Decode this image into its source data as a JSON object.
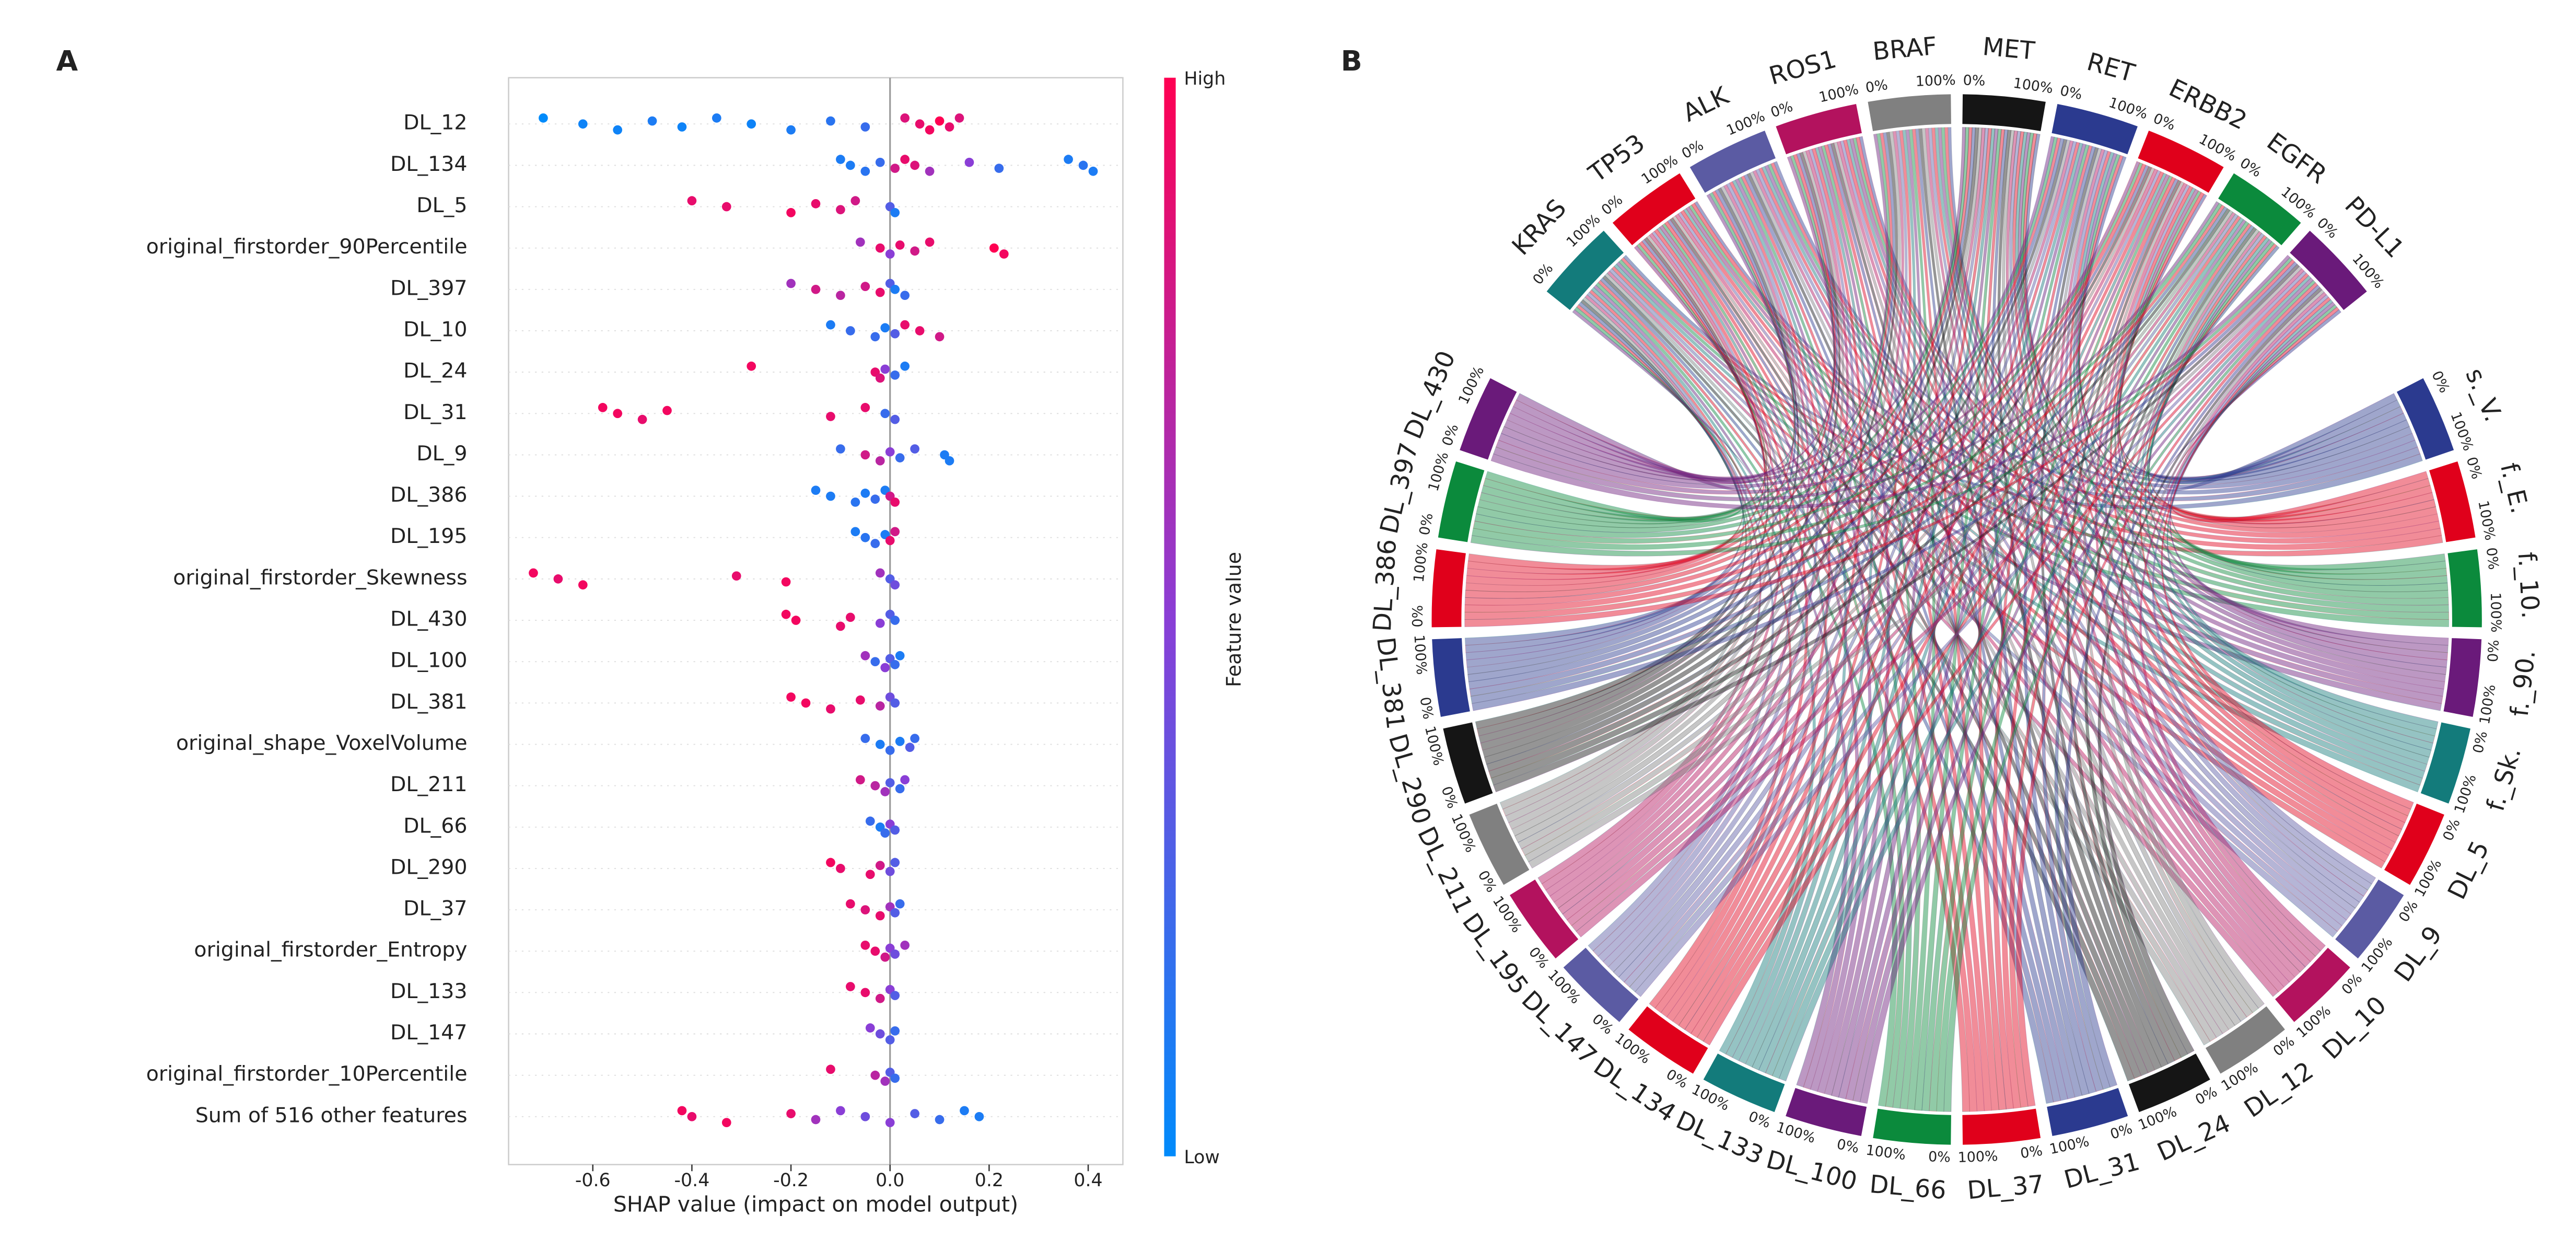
{
  "chart_data": [
    {
      "type": "beeswarm",
      "panel": "A",
      "xlabel": "SHAP value (impact on model output)",
      "colorbar_label": "Feature value",
      "colorbar_high": "High",
      "colorbar_low": "Low",
      "colormap": [
        "#008bfb",
        "#8a3ed6",
        "#ff0052"
      ],
      "xlim": [
        -0.77,
        0.47
      ],
      "xticks": [
        -0.6,
        -0.4,
        -0.2,
        {
          "value": 0,
          "label": "0.0"
        },
        0.2,
        0.4
      ],
      "series": [
        {
          "name": "DL_12",
          "values": [
            -0.7,
            -0.62,
            -0.55,
            -0.48,
            -0.42,
            -0.35,
            -0.28,
            -0.2,
            -0.12,
            -0.05,
            0.03,
            0.06,
            0.08,
            0.1,
            0.12,
            0.14
          ],
          "feature_values": [
            0,
            0.05,
            0.05,
            0.1,
            0.05,
            0.1,
            0.05,
            0.1,
            0.15,
            0.2,
            0.85,
            0.9,
            0.95,
            1,
            0.9,
            0.85
          ]
        },
        {
          "name": "DL_134",
          "values": [
            -0.1,
            -0.08,
            -0.05,
            -0.02,
            0.01,
            0.03,
            0.05,
            0.08,
            0.16,
            0.22,
            0.36,
            0.39,
            0.41
          ],
          "feature_values": [
            0.1,
            0.1,
            0.15,
            0.2,
            0.8,
            0.9,
            0.85,
            0.6,
            0.5,
            0.2,
            0.1,
            0.15,
            0.1
          ]
        },
        {
          "name": "DL_5",
          "values": [
            -0.4,
            -0.33,
            -0.2,
            -0.15,
            -0.1,
            -0.07,
            0,
            0.01
          ],
          "feature_values": [
            0.9,
            0.9,
            0.95,
            0.9,
            0.85,
            0.8,
            0.3,
            0.1
          ]
        },
        {
          "name": "original_firstorder_90Percentile",
          "values": [
            -0.06,
            -0.02,
            0,
            0.02,
            0.05,
            0.08,
            0.21,
            0.23
          ],
          "feature_values": [
            0.6,
            0.9,
            0.5,
            0.9,
            0.8,
            0.9,
            1,
            0.95
          ]
        },
        {
          "name": "DL_397",
          "values": [
            -0.2,
            -0.15,
            -0.1,
            -0.05,
            -0.02,
            0,
            0.01,
            0.03
          ],
          "feature_values": [
            0.6,
            0.8,
            0.7,
            0.8,
            0.9,
            0.3,
            0.1,
            0.2
          ]
        },
        {
          "name": "DL_10",
          "values": [
            -0.12,
            -0.08,
            -0.03,
            -0.01,
            0.01,
            0.03,
            0.06,
            0.1
          ],
          "feature_values": [
            0.1,
            0.2,
            0.2,
            0.1,
            0.3,
            0.9,
            0.9,
            0.8
          ]
        },
        {
          "name": "DL_24",
          "values": [
            -0.28,
            -0.03,
            -0.02,
            -0.01,
            0.01,
            0.03
          ],
          "feature_values": [
            0.95,
            0.9,
            0.85,
            0.5,
            0.2,
            0.1
          ]
        },
        {
          "name": "DL_31",
          "values": [
            -0.58,
            -0.55,
            -0.5,
            -0.45,
            -0.12,
            -0.05,
            -0.01,
            0.01
          ],
          "feature_values": [
            0.95,
            0.95,
            0.9,
            0.95,
            0.9,
            0.9,
            0.2,
            0.3
          ]
        },
        {
          "name": "DL_9",
          "values": [
            -0.1,
            -0.05,
            -0.02,
            0,
            0.02,
            0.05,
            0.11,
            0.12
          ],
          "feature_values": [
            0.2,
            0.8,
            0.7,
            0.5,
            0.2,
            0.3,
            0.1,
            0.1
          ]
        },
        {
          "name": "DL_386",
          "values": [
            -0.15,
            -0.12,
            -0.07,
            -0.05,
            -0.03,
            -0.01,
            0,
            0.01
          ],
          "feature_values": [
            0.1,
            0.1,
            0.15,
            0.1,
            0.2,
            0.1,
            0.8,
            0.9
          ]
        },
        {
          "name": "DL_195",
          "values": [
            -0.07,
            -0.05,
            -0.03,
            -0.01,
            0,
            0.01
          ],
          "feature_values": [
            0.1,
            0.15,
            0.2,
            0.1,
            0.9,
            0.8
          ]
        },
        {
          "name": "original_firstorder_Skewness",
          "values": [
            -0.72,
            -0.67,
            -0.62,
            -0.31,
            -0.21,
            -0.02,
            0,
            0.01
          ],
          "feature_values": [
            0.95,
            0.9,
            0.95,
            0.9,
            0.95,
            0.6,
            0.3,
            0.4
          ]
        },
        {
          "name": "DL_430",
          "values": [
            -0.21,
            -0.19,
            -0.1,
            -0.08,
            -0.02,
            0,
            0.01
          ],
          "feature_values": [
            0.95,
            0.95,
            0.9,
            0.9,
            0.5,
            0.3,
            0.2
          ]
        },
        {
          "name": "DL_100",
          "values": [
            -0.05,
            -0.03,
            -0.01,
            0,
            0.01,
            0.02
          ],
          "feature_values": [
            0.6,
            0.2,
            0.5,
            0.3,
            0.2,
            0.1
          ]
        },
        {
          "name": "DL_381",
          "values": [
            -0.2,
            -0.17,
            -0.12,
            -0.06,
            -0.02,
            0,
            0.01
          ],
          "feature_values": [
            0.95,
            0.95,
            0.9,
            0.9,
            0.7,
            0.4,
            0.3
          ]
        },
        {
          "name": "original_shape_VoxelVolume",
          "values": [
            -0.05,
            -0.02,
            0,
            0.02,
            0.04,
            0.05
          ],
          "feature_values": [
            0.2,
            0.1,
            0.2,
            0.1,
            0.3,
            0.2
          ]
        },
        {
          "name": "DL_211",
          "values": [
            -0.06,
            -0.03,
            -0.01,
            0,
            0.02,
            0.03
          ],
          "feature_values": [
            0.8,
            0.7,
            0.6,
            0.3,
            0.2,
            0.5
          ]
        },
        {
          "name": "DL_66",
          "values": [
            -0.04,
            -0.02,
            -0.01,
            0,
            0.01
          ],
          "feature_values": [
            0.2,
            0.1,
            0.2,
            0.5,
            0.3
          ]
        },
        {
          "name": "DL_290",
          "values": [
            -0.12,
            -0.1,
            -0.04,
            -0.02,
            0,
            0.01
          ],
          "feature_values": [
            0.95,
            0.9,
            0.9,
            0.8,
            0.4,
            0.3
          ]
        },
        {
          "name": "DL_37",
          "values": [
            -0.08,
            -0.05,
            -0.02,
            0,
            0.01,
            0.02
          ],
          "feature_values": [
            0.9,
            0.85,
            0.9,
            0.6,
            0.3,
            0.2
          ]
        },
        {
          "name": "original_firstorder_Entropy",
          "values": [
            -0.05,
            -0.03,
            -0.01,
            0,
            0.01,
            0.03
          ],
          "feature_values": [
            0.9,
            0.9,
            0.8,
            0.5,
            0.4,
            0.6
          ]
        },
        {
          "name": "DL_133",
          "values": [
            -0.08,
            -0.05,
            -0.02,
            0,
            0.01
          ],
          "feature_values": [
            0.9,
            0.9,
            0.8,
            0.5,
            0.3
          ]
        },
        {
          "name": "DL_147",
          "values": [
            -0.04,
            -0.02,
            0,
            0.01
          ],
          "feature_values": [
            0.5,
            0.4,
            0.3,
            0.2
          ]
        },
        {
          "name": "original_firstorder_10Percentile",
          "values": [
            -0.12,
            -0.03,
            -0.01,
            0,
            0.01
          ],
          "feature_values": [
            0.9,
            0.7,
            0.6,
            0.3,
            0.2
          ]
        },
        {
          "name": "Sum of 516 other features",
          "values": [
            -0.42,
            -0.4,
            -0.33,
            -0.2,
            -0.15,
            -0.1,
            -0.05,
            0,
            0.05,
            0.1,
            0.15,
            0.18
          ],
          "feature_values": [
            0.95,
            0.9,
            0.95,
            0.9,
            0.6,
            0.5,
            0.4,
            0.5,
            0.3,
            0.2,
            0.1,
            0.1
          ]
        }
      ]
    },
    {
      "type": "chord",
      "panel": "B",
      "tick_labels": [
        "0%",
        "100%"
      ],
      "genes": [
        {
          "name": "KRAS",
          "color": "#137b7b"
        },
        {
          "name": "TP53",
          "color": "#e0001b"
        },
        {
          "name": "ALK",
          "color": "#5b5ba3"
        },
        {
          "name": "ROS1",
          "color": "#b3125e"
        },
        {
          "name": "BRAF",
          "color": "#808080"
        },
        {
          "name": "MET",
          "color": "#151515"
        },
        {
          "name": "RET",
          "color": "#2b3a8f"
        },
        {
          "name": "ERBB2",
          "color": "#e0001b"
        },
        {
          "name": "EGFR",
          "color": "#0b8a3c"
        },
        {
          "name": "PD-L1",
          "color": "#6a1a7a"
        }
      ],
      "features": [
        {
          "name": "s._V.",
          "color": "#2b3a8f"
        },
        {
          "name": "f._E.",
          "color": "#e0001b"
        },
        {
          "name": "f._10.",
          "color": "#0b8a3c"
        },
        {
          "name": "f._90.",
          "color": "#6a1a7a"
        },
        {
          "name": "f._Sk.",
          "color": "#137b7b"
        },
        {
          "name": "DL_5",
          "color": "#e0001b"
        },
        {
          "name": "DL_9",
          "color": "#5b5ba3"
        },
        {
          "name": "DL_10",
          "color": "#b3125e"
        },
        {
          "name": "DL_12",
          "color": "#808080"
        },
        {
          "name": "DL_24",
          "color": "#151515"
        },
        {
          "name": "DL_31",
          "color": "#2b3a8f"
        },
        {
          "name": "DL_37",
          "color": "#e0001b"
        },
        {
          "name": "DL_66",
          "color": "#0b8a3c"
        },
        {
          "name": "DL_100",
          "color": "#6a1a7a"
        },
        {
          "name": "DL_133",
          "color": "#137b7b"
        },
        {
          "name": "DL_134",
          "color": "#e0001b"
        },
        {
          "name": "DL_147",
          "color": "#5b5ba3"
        },
        {
          "name": "DL_195",
          "color": "#b3125e"
        },
        {
          "name": "DL_211",
          "color": "#808080"
        },
        {
          "name": "DL_290",
          "color": "#151515"
        },
        {
          "name": "DL_381",
          "color": "#2b3a8f"
        },
        {
          "name": "DL_386",
          "color": "#e0001b"
        },
        {
          "name": "DL_397",
          "color": "#0b8a3c"
        },
        {
          "name": "DL_430",
          "color": "#6a1a7a"
        }
      ]
    }
  ]
}
